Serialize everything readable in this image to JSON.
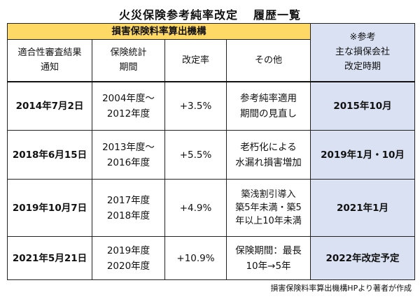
{
  "title_main": "火災保険参考純率改定",
  "title_sub": "履歴一覧",
  "header": {
    "org": "損害保険料率算出機構",
    "ref_mark": "※参考",
    "ref_line1": "主な損保会社",
    "ref_line2": "改定時期",
    "col1_line1": "適合性審査結果",
    "col1_line2": "通知",
    "col2_line1": "保険統計",
    "col2_line2": "期間",
    "col3": "改定率",
    "col4": "その他"
  },
  "rows": [
    {
      "date": "2014年7月2日",
      "period_line1": "2004年度～",
      "period_line2": "2012年度",
      "rate": "+3.5%",
      "other_lines": [
        "参考純率適用",
        "期間の見直し"
      ],
      "ref": "2015年10月"
    },
    {
      "date": "2018年6月15日",
      "period_line1": "2013年度～",
      "period_line2": "2016年度",
      "rate": "+5.5%",
      "other_lines": [
        "老朽化による",
        "水漏れ損害増加"
      ],
      "ref": "2019年1月・10月"
    },
    {
      "date": "2019年10月7日",
      "period_line1": "2017年度",
      "period_line2": "2018年度",
      "rate": "+4.9%",
      "other_lines": [
        "築浅割引導入",
        "築5年未満・築5",
        "年以上10年未満"
      ],
      "ref": "2021年1月"
    },
    {
      "date": "2021年5月21日",
      "period_line1": "2019年度",
      "period_line2": "2020年度",
      "rate": "+10.9%",
      "other_lines": [
        "保険期間：最長",
        "10年→5年"
      ],
      "ref": "2022年改定予定"
    }
  ],
  "footer": "損害保険料率算出機構HPより著者が作成"
}
